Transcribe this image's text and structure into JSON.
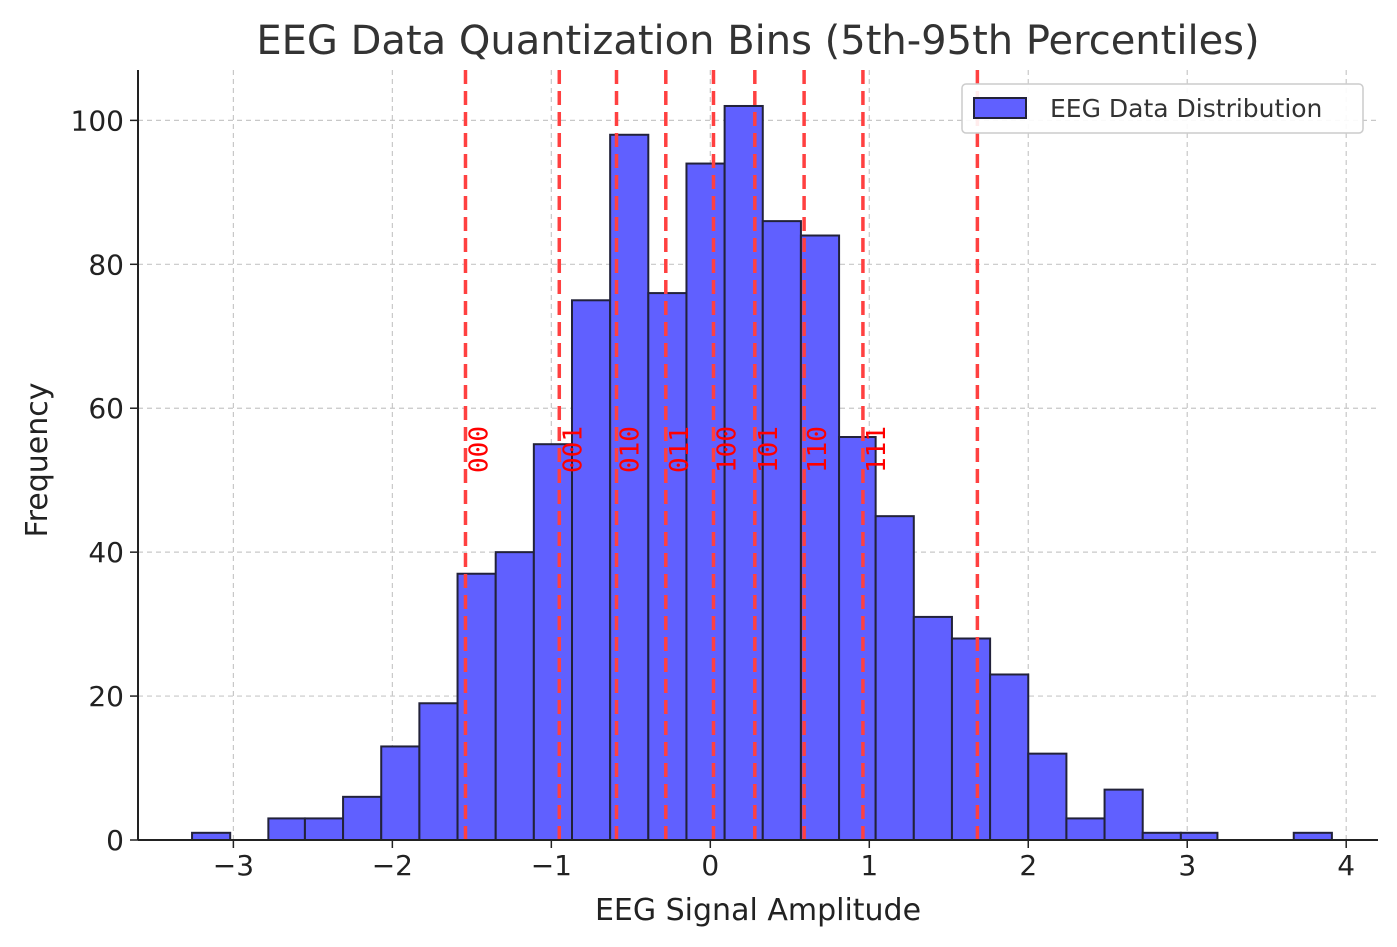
{
  "chart_data": {
    "type": "bar",
    "title": "EEG Data Quantization Bins (5th-95th Percentiles)",
    "xlabel": "EEG Signal Amplitude",
    "ylabel": "Frequency",
    "xlim": [
      -3.6,
      4.2
    ],
    "ylim": [
      0,
      107
    ],
    "grid": true,
    "legend_position": "top-right",
    "x_ticks": [
      {
        "value": -3,
        "label": "−3"
      },
      {
        "value": -2,
        "label": "−2"
      },
      {
        "value": -1,
        "label": "−1"
      },
      {
        "value": 0,
        "label": "0"
      },
      {
        "value": 1,
        "label": "1"
      },
      {
        "value": 2,
        "label": "2"
      },
      {
        "value": 3,
        "label": "3"
      },
      {
        "value": 4,
        "label": "4"
      }
    ],
    "y_ticks": [
      {
        "value": 0,
        "label": "0"
      },
      {
        "value": 20,
        "label": "20"
      },
      {
        "value": 40,
        "label": "40"
      },
      {
        "value": 60,
        "label": "60"
      },
      {
        "value": 80,
        "label": "80"
      },
      {
        "value": 100,
        "label": "100"
      }
    ],
    "series": [
      {
        "name": "EEG Data Distribution",
        "color": "#6060ff",
        "edge_color": "#22223a",
        "bin_edges": [
          -3.26,
          -3.02,
          -2.78,
          -2.55,
          -2.31,
          -2.07,
          -1.83,
          -1.59,
          -1.35,
          -1.11,
          -0.87,
          -0.63,
          -0.39,
          -0.15,
          0.09,
          0.33,
          0.57,
          0.81,
          1.04,
          1.28,
          1.52,
          1.76,
          2.0,
          2.24,
          2.48,
          2.72,
          2.96,
          3.19,
          3.43,
          3.67,
          3.91
        ],
        "counts": [
          1,
          0,
          3,
          3,
          6,
          13,
          19,
          37,
          40,
          55,
          75,
          98,
          76,
          94,
          102,
          86,
          84,
          56,
          45,
          31,
          28,
          23,
          12,
          3,
          7,
          1,
          1,
          0,
          0,
          1
        ]
      }
    ],
    "quantization": {
      "color": "#ff4040",
      "thresholds": [
        -1.54,
        -0.95,
        -0.59,
        -0.28,
        0.02,
        0.28,
        0.59,
        0.96,
        1.68
      ],
      "labels": [
        {
          "x": -1.54,
          "y": 51,
          "text": "000"
        },
        {
          "x": -0.95,
          "y": 51,
          "text": "001"
        },
        {
          "x": -0.59,
          "y": 51,
          "text": "010"
        },
        {
          "x": -0.28,
          "y": 51,
          "text": "011"
        },
        {
          "x": 0.02,
          "y": 51,
          "text": "100"
        },
        {
          "x": 0.28,
          "y": 51,
          "text": "101"
        },
        {
          "x": 0.59,
          "y": 51,
          "text": "110"
        },
        {
          "x": 0.96,
          "y": 51,
          "text": "111"
        }
      ]
    }
  }
}
